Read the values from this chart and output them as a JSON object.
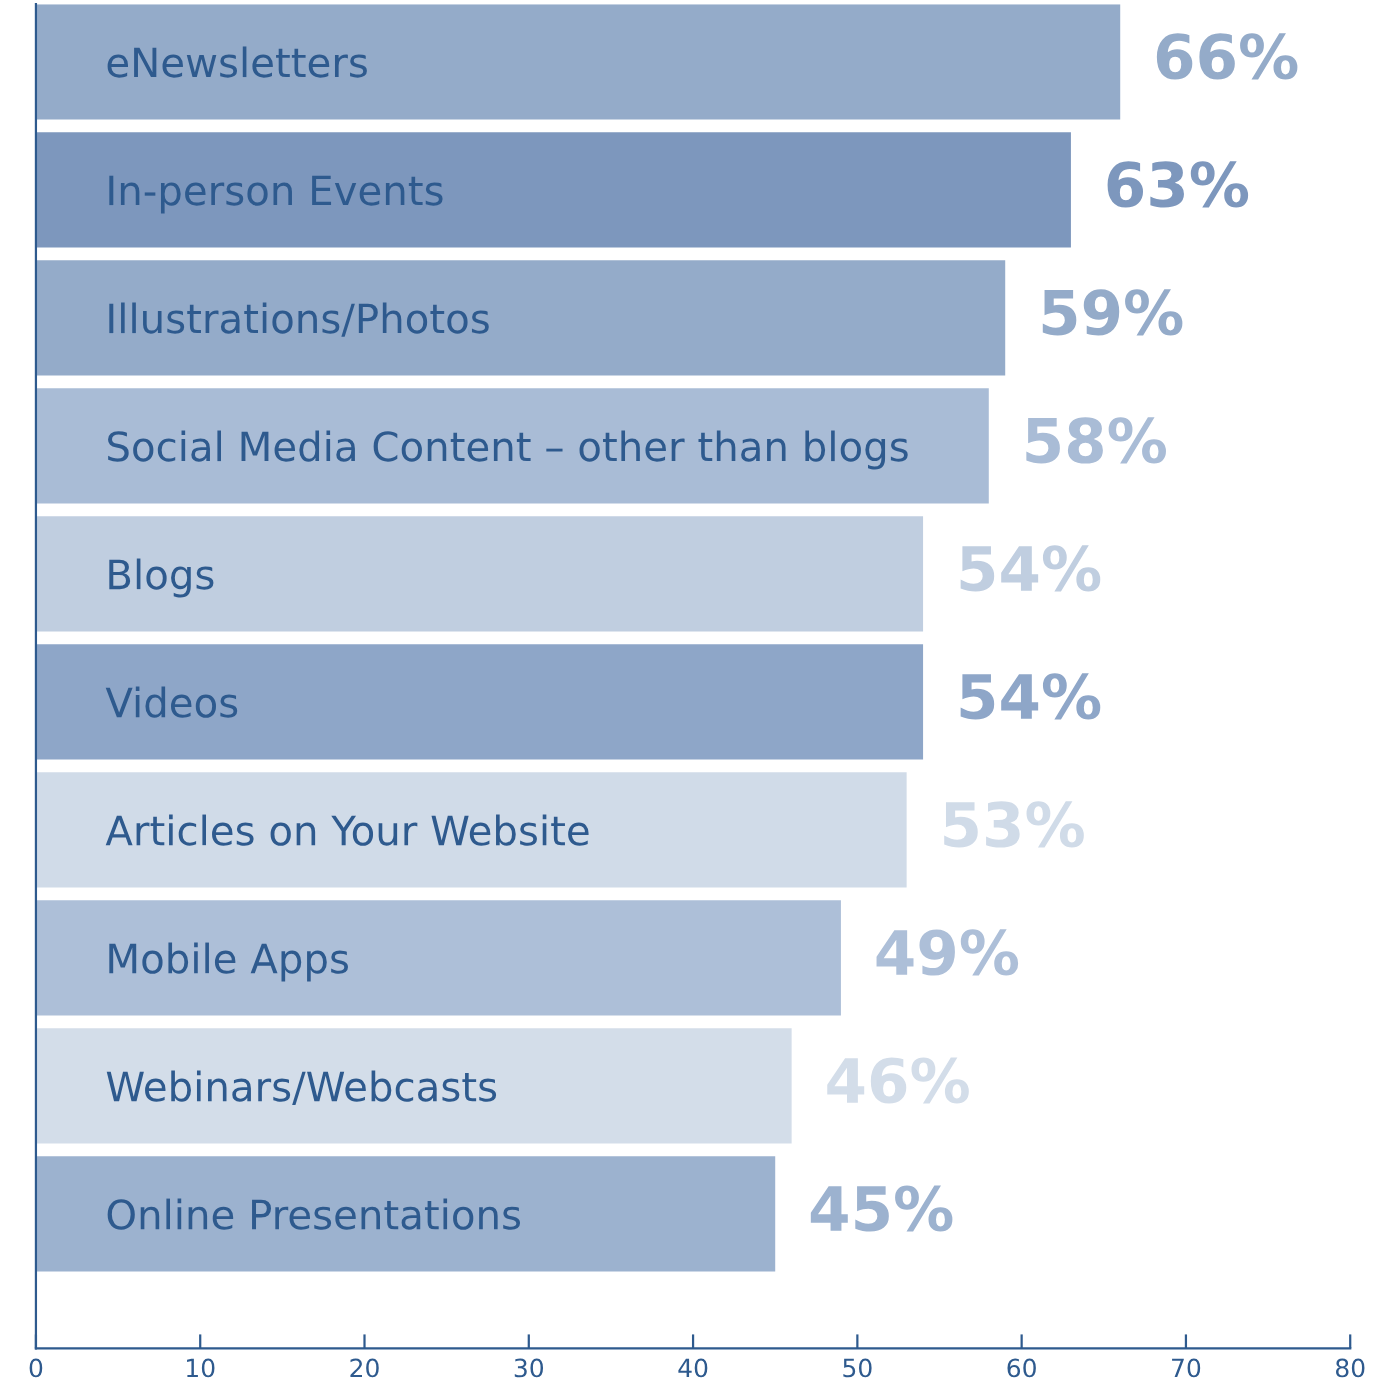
{
  "chart_data": {
    "type": "bar",
    "orientation": "horizontal",
    "categories": [
      "eNewsletters",
      "In-person Events",
      "Illustrations/Photos",
      "Social Media Content – other than blogs",
      "Blogs",
      "Videos",
      "Articles on Your Website",
      "Mobile Apps",
      "Webinars/Webcasts",
      "Online Presentations"
    ],
    "values": [
      66,
      63,
      59,
      58,
      54,
      54,
      53,
      49,
      46,
      45
    ],
    "value_labels": [
      "66%",
      "63%",
      "59%",
      "58%",
      "54%",
      "54%",
      "53%",
      "49%",
      "46%",
      "45%"
    ],
    "colors": [
      "#94abc9",
      "#7d97bd",
      "#94abc9",
      "#a9bcd6",
      "#c0cee0",
      "#8ea6c8",
      "#d0dbe8",
      "#adbfd8",
      "#d3dde9",
      "#9cb2cf"
    ],
    "xlim": [
      0,
      80
    ],
    "xticks": [
      0,
      10,
      20,
      30,
      40,
      50,
      60,
      70,
      80
    ],
    "grid": false,
    "legend": false
  }
}
